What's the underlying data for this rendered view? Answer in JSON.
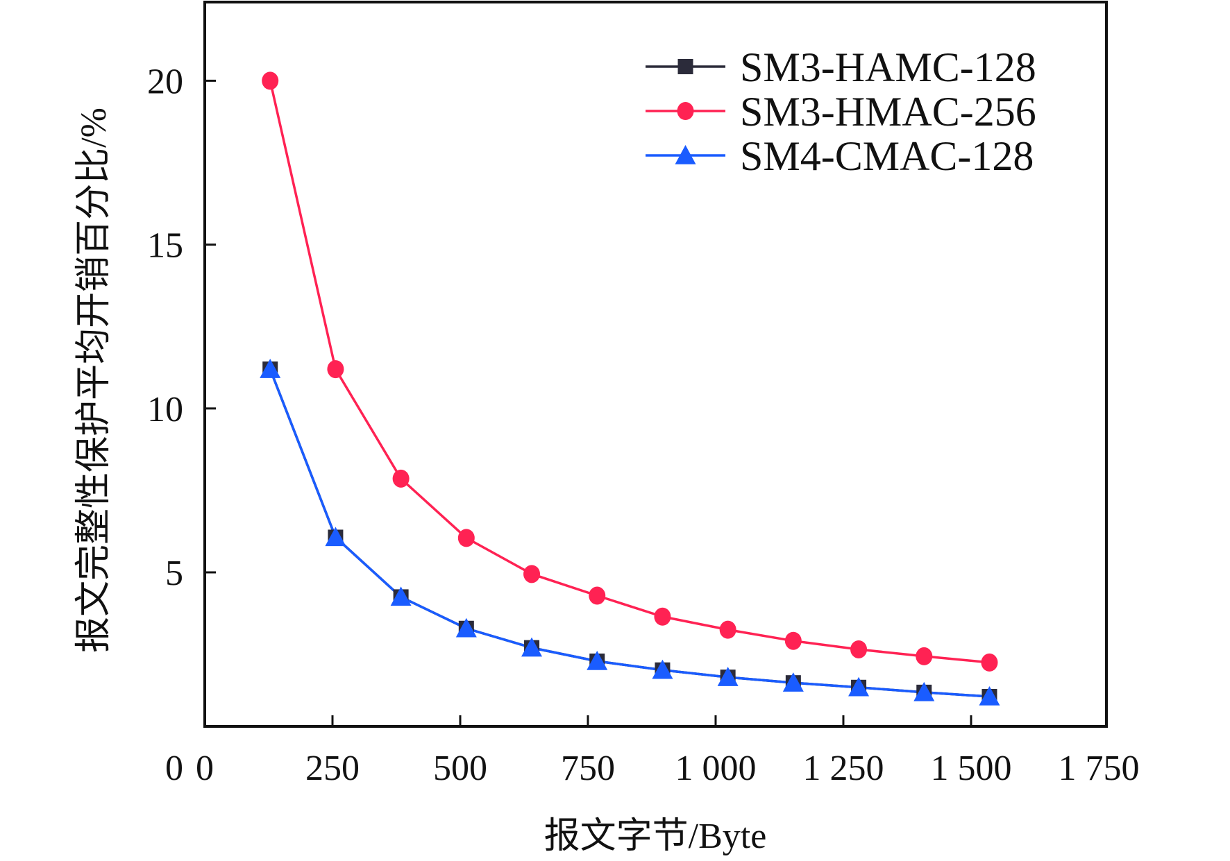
{
  "chart_data": {
    "type": "line",
    "title": "",
    "xlabel": "报文字节/Byte",
    "ylabel": "报文完整性保护平均开销百分比/%",
    "xlim": [
      0,
      1765
    ],
    "ylim": [
      0.3,
      22.4
    ],
    "xticks": [
      250,
      500,
      750,
      1000,
      1250,
      1500
    ],
    "xtick_labels": [
      "0",
      "250",
      "500",
      "750",
      "1 000",
      "1 250",
      "1 500",
      "1 750"
    ],
    "xtick_label_values": [
      0,
      250,
      500,
      750,
      1000,
      1250,
      1500,
      1750
    ],
    "yticks": [
      5,
      10,
      15,
      20
    ],
    "ytick_labels": [
      "0",
      "5",
      "10",
      "15",
      "20"
    ],
    "ytick_label_values": [
      0,
      5,
      10,
      15,
      20
    ],
    "grid": false,
    "legend_position": "top-right",
    "x": [
      128,
      256,
      384,
      512,
      640,
      768,
      896,
      1024,
      1152,
      1280,
      1408,
      1536
    ],
    "series": [
      {
        "name": "SM3-HAMC-128",
        "color": "#2b2b3a",
        "marker": "square",
        "values": [
          11.2,
          6.07,
          4.25,
          3.29,
          2.7,
          2.29,
          2.02,
          1.8,
          1.63,
          1.49,
          1.34,
          1.21
        ]
      },
      {
        "name": "SM3-HMAC-256",
        "color": "#ff2253",
        "marker": "circle",
        "values": [
          20.0,
          11.2,
          7.86,
          6.05,
          4.95,
          4.29,
          3.65,
          3.25,
          2.91,
          2.65,
          2.44,
          2.25
        ]
      },
      {
        "name": "SM4-CMAC-128",
        "color": "#1a5cff",
        "marker": "triangle",
        "values": [
          11.2,
          6.07,
          4.25,
          3.29,
          2.7,
          2.29,
          2.02,
          1.8,
          1.63,
          1.49,
          1.34,
          1.21
        ]
      }
    ]
  }
}
